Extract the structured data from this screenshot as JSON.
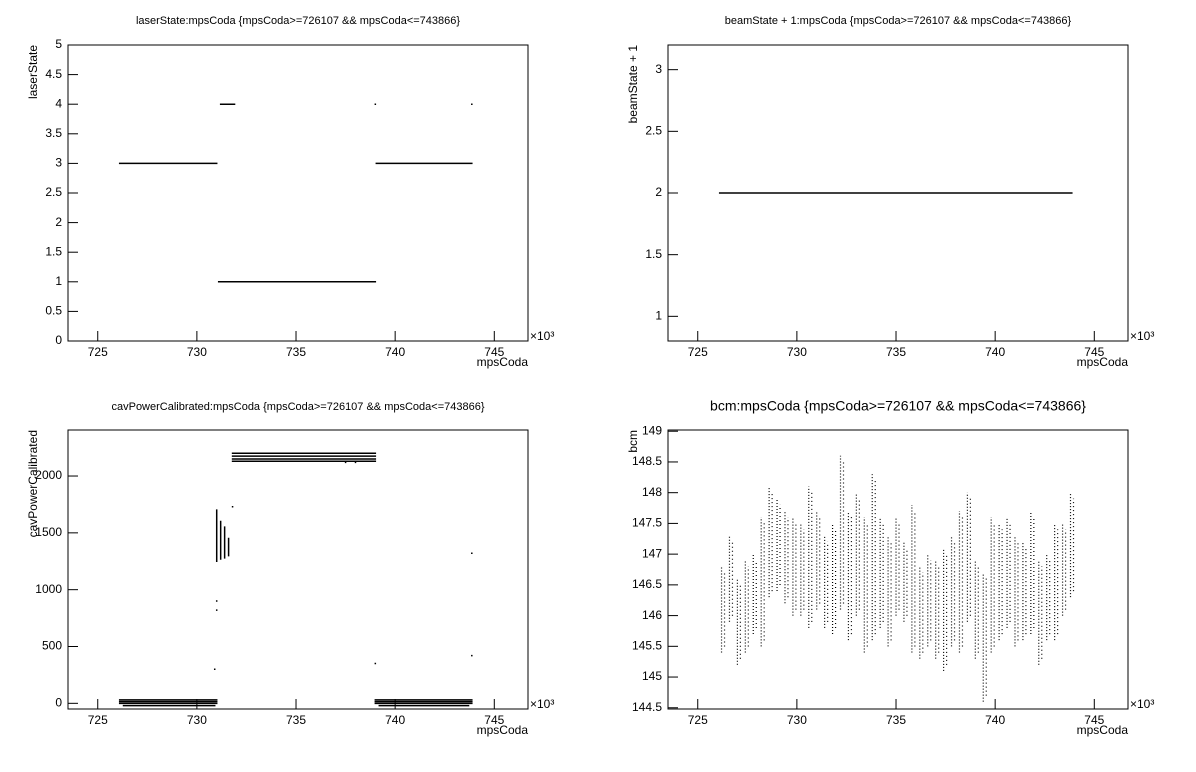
{
  "chart_data": [
    {
      "type": "line",
      "title": "laserState:mpsCoda {mpsCoda>=726107 && mpsCoda<=743866}",
      "x_label": "mpsCoda",
      "y_label": "laserState",
      "x_multiplier": "×10³",
      "color": "#000000",
      "xlim": [
        723.5,
        746.7
      ],
      "xticks": [
        725,
        730,
        735,
        740,
        745
      ],
      "ylim": [
        0,
        5
      ],
      "yticks": [
        0,
        0.5,
        1,
        1.5,
        2,
        2.5,
        3,
        3.5,
        4,
        4.5,
        5
      ],
      "x": [
        726.107,
        731.0,
        null,
        731.2,
        731.9,
        null,
        731.1,
        739.0,
        null,
        739.05,
        743.866,
        null,
        739.0,
        null,
        743.866
      ],
      "values": [
        3,
        3,
        null,
        4,
        4,
        null,
        1,
        1,
        null,
        3,
        3,
        null,
        4,
        null,
        4
      ]
    },
    {
      "type": "line",
      "title": "beamState + 1:mpsCoda {mpsCoda>=726107 && mpsCoda<=743866}",
      "x_label": "mpsCoda",
      "y_label": "beamState + 1",
      "x_multiplier": "×10³",
      "color": "#000000",
      "xlim": [
        723.5,
        746.7
      ],
      "xticks": [
        725,
        730,
        735,
        740,
        745
      ],
      "ylim": [
        0.8,
        3.2
      ],
      "yticks": [
        1,
        1.5,
        2,
        2.5,
        3
      ],
      "x": [
        726.107,
        743.866
      ],
      "values": [
        2,
        2
      ]
    },
    {
      "type": "line",
      "title": "cavPowerCalibrated:mpsCoda {mpsCoda>=726107 && mpsCoda<=743866}",
      "x_label": "mpsCoda",
      "y_label": "cavPowerCalibrated",
      "x_multiplier": "×10³",
      "color": "#000000",
      "xlim": [
        723.5,
        746.7
      ],
      "xticks": [
        725,
        730,
        735,
        740,
        745
      ],
      "ylim": [
        -50,
        2405
      ],
      "yticks": [
        0,
        500,
        1000,
        1500,
        2000
      ],
      "x": [
        726.107,
        731.0,
        null,
        726.107,
        731.0,
        null,
        726.107,
        731.0,
        null,
        726.3,
        730.9,
        null,
        731.0,
        731.0,
        null,
        731.2,
        731.2,
        null,
        731.4,
        731.4,
        null,
        731.6,
        731.6,
        null,
        731.0,
        null,
        731.0,
        null,
        730.9,
        null,
        731.8,
        null,
        731.8,
        739.0,
        null,
        731.8,
        739.0,
        null,
        731.8,
        739.0,
        null,
        731.8,
        739.0,
        null,
        738.0,
        null,
        737.5,
        null,
        739.0,
        743.866,
        null,
        739.0,
        743.866,
        null,
        739.0,
        743.866,
        null,
        739.2,
        743.7,
        null,
        739.0,
        null,
        743.866,
        null,
        743.866
      ],
      "values": [
        30,
        30,
        null,
        15,
        15,
        null,
        0,
        0,
        null,
        -20,
        -20,
        null,
        1250,
        1700,
        null,
        1270,
        1600,
        null,
        1280,
        1550,
        null,
        1300,
        1450,
        null,
        900,
        null,
        820,
        null,
        300,
        null,
        1730,
        null,
        2200,
        2200,
        null,
        2175,
        2175,
        null,
        2150,
        2150,
        null,
        2130,
        2130,
        null,
        2120,
        null,
        2120,
        null,
        30,
        30,
        null,
        15,
        15,
        null,
        0,
        0,
        null,
        -20,
        -20,
        null,
        350,
        null,
        1320,
        null,
        420
      ]
    },
    {
      "type": "range",
      "title": "bcm:mpsCoda {mpsCoda>=726107 && mpsCoda<=743866}",
      "x_label": "mpsCoda",
      "y_label": "bcm",
      "x_multiplier": "×10³",
      "color": "#000000",
      "xlim": [
        723.5,
        746.7
      ],
      "xticks": [
        725,
        730,
        735,
        740,
        745
      ],
      "ylim": [
        144.48,
        149.02
      ],
      "yticks": [
        144.5,
        145,
        145.5,
        146,
        146.5,
        147,
        147.5,
        148,
        148.5,
        149
      ],
      "x": [
        726.2,
        726.6,
        727.0,
        727.4,
        727.8,
        728.2,
        728.6,
        729.0,
        729.4,
        729.8,
        730.2,
        730.6,
        731.0,
        731.4,
        731.8,
        732.2,
        732.6,
        733.0,
        733.4,
        733.8,
        734.2,
        734.6,
        735.0,
        735.4,
        735.8,
        736.2,
        736.6,
        737.0,
        737.4,
        737.8,
        738.2,
        738.6,
        739.0,
        739.4,
        739.8,
        740.2,
        740.6,
        741.0,
        741.4,
        741.8,
        742.2,
        742.6,
        743.0,
        743.4,
        743.8
      ],
      "low": [
        145.4,
        145.9,
        145.2,
        145.4,
        145.7,
        145.5,
        146.3,
        146.4,
        146.2,
        146.0,
        146.0,
        145.8,
        146.1,
        145.8,
        145.7,
        146.1,
        145.6,
        146.0,
        145.4,
        145.6,
        145.8,
        145.5,
        146.0,
        145.9,
        145.4,
        145.3,
        145.5,
        145.3,
        145.1,
        145.5,
        145.4,
        145.9,
        145.3,
        144.6,
        145.4,
        145.6,
        145.8,
        145.5,
        145.6,
        145.7,
        145.2,
        145.6,
        145.6,
        146.0,
        146.3
      ],
      "high": [
        146.8,
        147.3,
        146.6,
        146.9,
        147.0,
        147.6,
        148.1,
        147.9,
        147.7,
        147.6,
        147.5,
        148.1,
        147.7,
        147.3,
        147.5,
        148.6,
        147.7,
        148.0,
        147.6,
        148.3,
        147.6,
        147.3,
        147.6,
        147.2,
        147.8,
        146.8,
        147.0,
        146.9,
        147.1,
        147.3,
        147.7,
        148.0,
        146.9,
        146.7,
        147.6,
        147.5,
        147.6,
        147.3,
        147.2,
        147.7,
        146.9,
        147.0,
        147.5,
        147.5,
        148.0
      ]
    }
  ]
}
